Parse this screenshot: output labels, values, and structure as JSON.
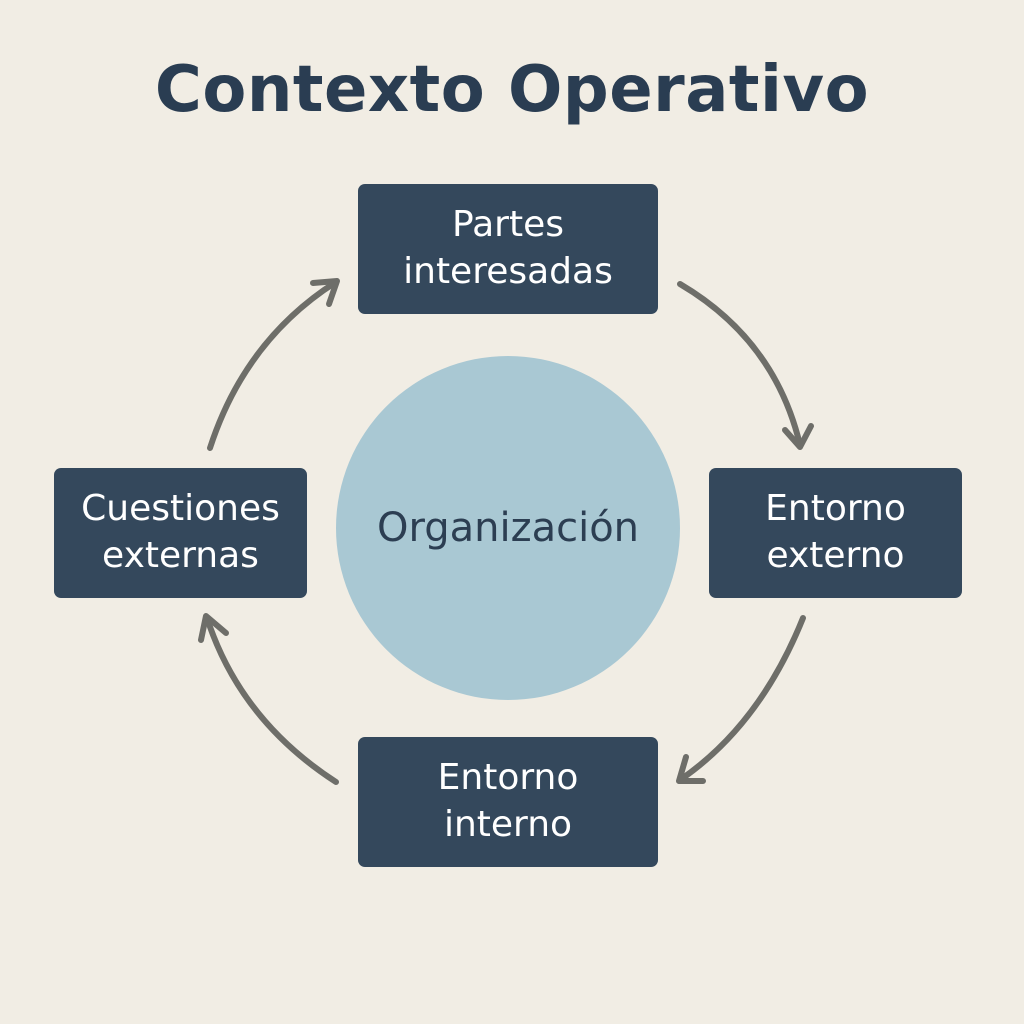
{
  "title": "Contexto Operativo",
  "center": {
    "label": "Organización"
  },
  "nodes": {
    "top": "Partes interesadas",
    "right": "Entorno externo",
    "bottom": "Entorno interno",
    "left": "Cuestiones externas"
  },
  "cycle_order": [
    "Partes interesadas",
    "Entorno externo",
    "Entorno interno",
    "Cuestiones externas"
  ],
  "colors": {
    "background": "#F1EDE4",
    "title": "#2A3D52",
    "node_fill": "#34485C",
    "node_text": "#FFFFFF",
    "center_fill": "#A9C8D3",
    "center_text": "#2C3E52",
    "arrow": "#6E6E69"
  }
}
